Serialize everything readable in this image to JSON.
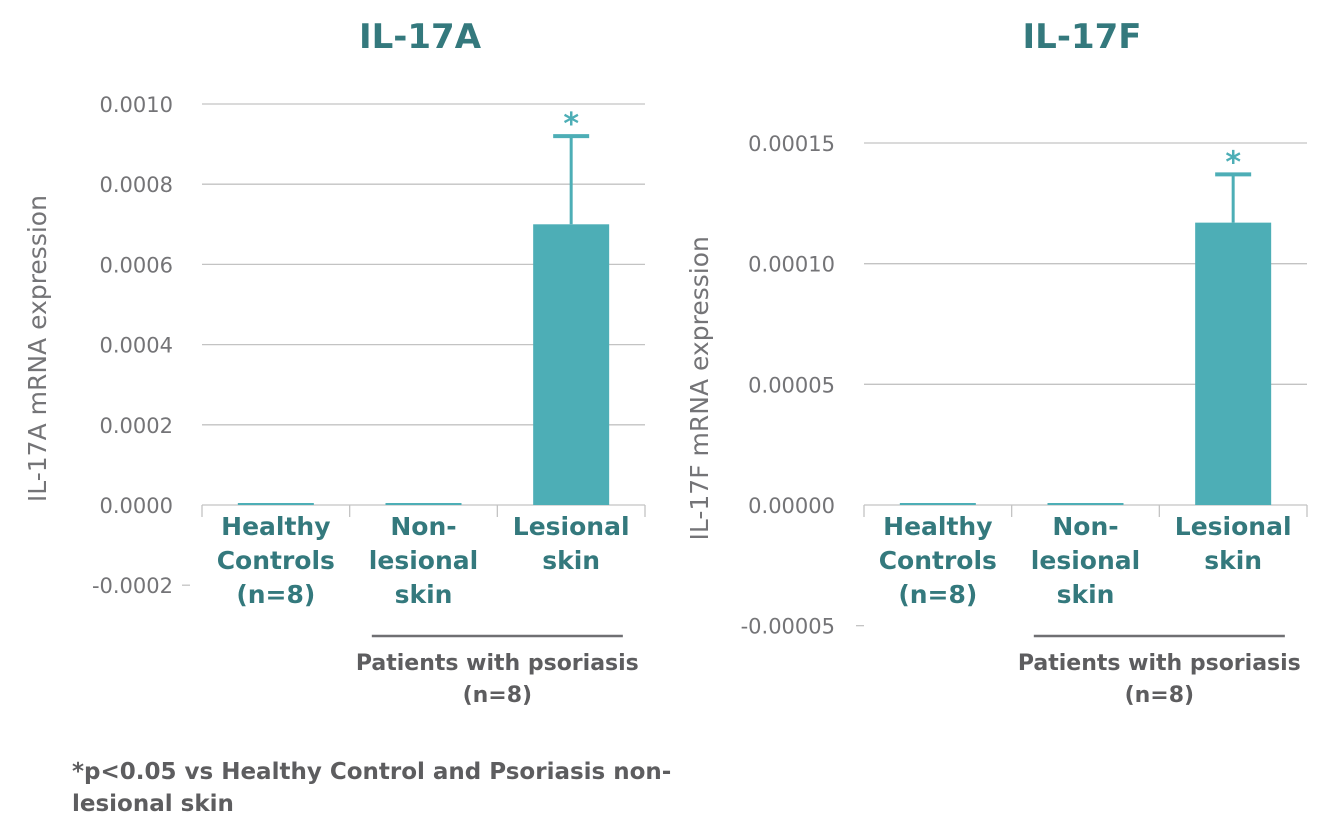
{
  "colors": {
    "bar": "#4daeb6",
    "title": "#34797d",
    "category_label": "#34797d",
    "axis_text": "#747477",
    "grid": "#c3c3c3",
    "group_bracket": "#6f6f72",
    "group_text": "#5d5d5f"
  },
  "chart_data": [
    {
      "type": "bar",
      "title": "IL-17A",
      "ylabel": "IL-17A mRNA expression",
      "categories": [
        [
          "Healthy",
          "Controls",
          "(n=8)"
        ],
        [
          "Non-",
          "lesional",
          "skin"
        ],
        [
          "Lesional",
          "skin"
        ]
      ],
      "values": [
        0.0,
        0.0,
        0.0007
      ],
      "error_upper": [
        0.0,
        0.0,
        0.00092
      ],
      "significance": [
        "",
        "",
        "*"
      ],
      "ylim": [
        -0.0002,
        0.001
      ],
      "yticks": [
        -0.0002,
        0.0,
        0.0002,
        0.0004,
        0.0006,
        0.0008,
        0.001
      ],
      "ytick_labels": [
        "-0.0002",
        "0.0000",
        "0.0002",
        "0.0004",
        "0.0006",
        "0.0008",
        "0.0010"
      ],
      "group_label": [
        "Patients with psoriasis",
        "(n=8)"
      ],
      "grid": true
    },
    {
      "type": "bar",
      "title": "IL-17F",
      "ylabel": "IL-17F mRNA expression",
      "categories": [
        [
          "Healthy",
          "Controls",
          "(n=8)"
        ],
        [
          "Non-",
          "lesional",
          "skin"
        ],
        [
          "Lesional",
          "skin"
        ]
      ],
      "values": [
        0.0,
        0.0,
        0.000117
      ],
      "error_upper": [
        0.0,
        0.0,
        0.000137
      ],
      "significance": [
        "",
        "",
        "*"
      ],
      "ylim": [
        -5e-05,
        0.00015
      ],
      "yticks": [
        -5e-05,
        0.0,
        5e-05,
        0.0001,
        0.00015
      ],
      "ytick_labels": [
        "-0.00005",
        "0.00000",
        "0.00005",
        "0.00010",
        "0.00015"
      ],
      "group_label": [
        "Patients with psoriasis",
        "(n=8)"
      ],
      "grid": true
    }
  ],
  "footnote": "*p<0.05 vs Healthy Control and Psoriasis non-lesional skin"
}
